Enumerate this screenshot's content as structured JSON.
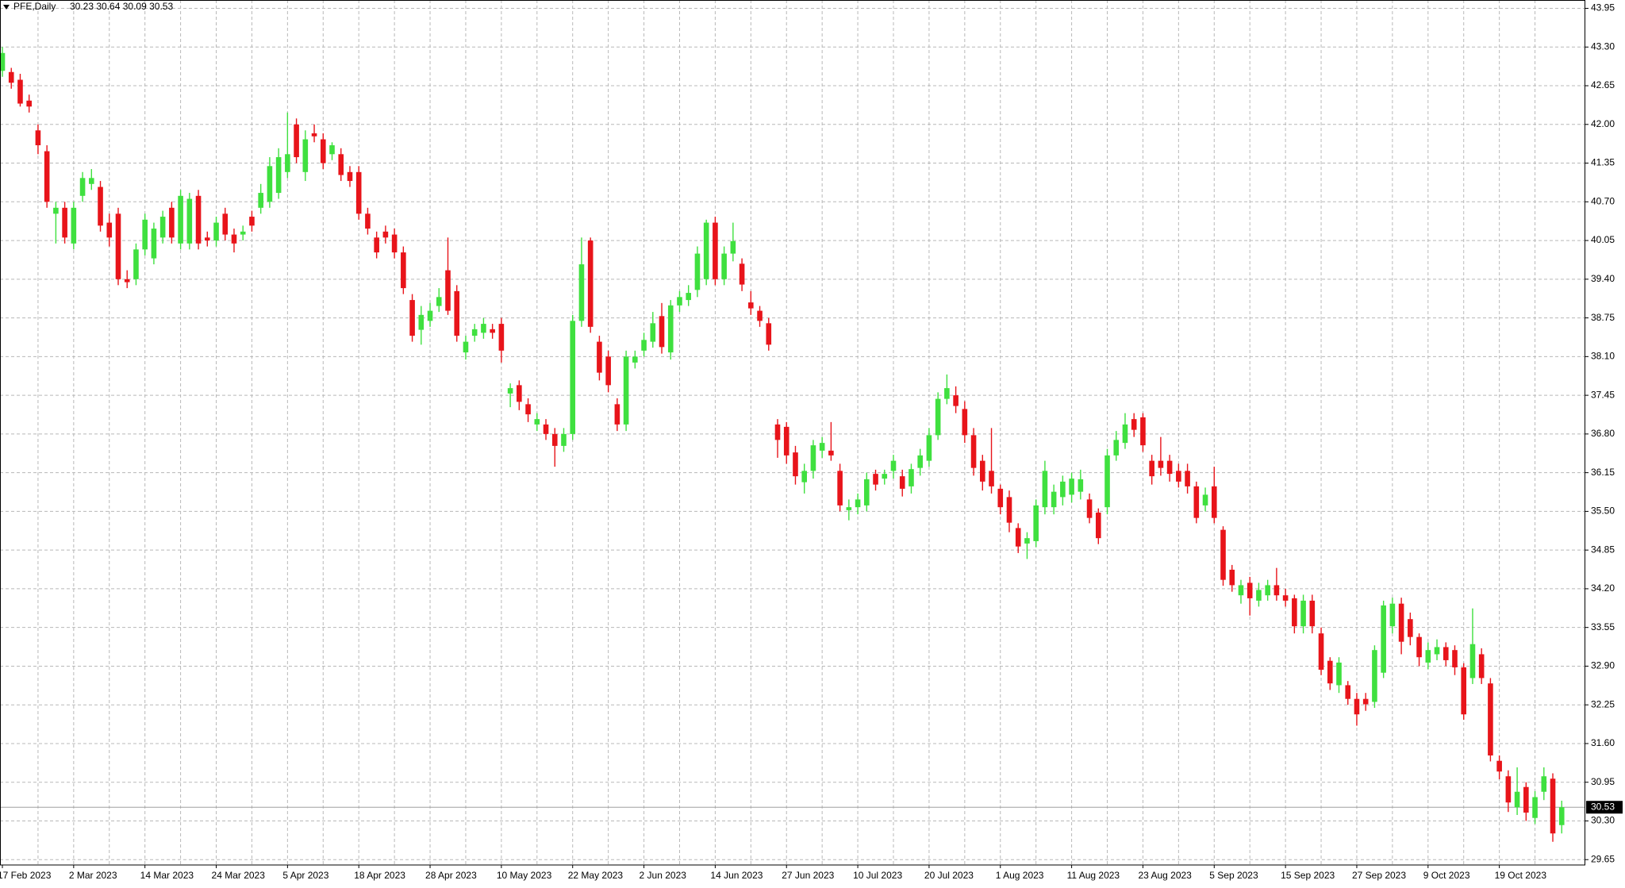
{
  "chart_data": {
    "type": "candlestick",
    "title": "PFE,Daily",
    "subtitle": "30.23 30.64 30.09 30.53",
    "up_color": "#3fe03f",
    "down_color": "#e8141a",
    "grid": true,
    "last_price": 30.53,
    "ylim": [
      29.56,
      44.09
    ],
    "yticks": [
      29.65,
      {
        "value": 30.3,
        "label": "30.30"
      },
      30.95,
      {
        "value": 31.6,
        "label": "31.60"
      },
      32.25,
      {
        "value": 32.9,
        "label": "32.90"
      },
      33.55,
      {
        "value": 34.2,
        "label": "34.20"
      },
      34.85,
      {
        "value": 35.5,
        "label": "35.50"
      },
      36.15,
      {
        "value": 36.8,
        "label": "36.80"
      },
      37.45,
      {
        "value": 38.1,
        "label": "38.10"
      },
      38.75,
      {
        "value": 39.4,
        "label": "39.40"
      },
      40.05,
      {
        "value": 40.7,
        "label": "40.70"
      },
      41.35,
      {
        "value": 42,
        "label": "42.00"
      },
      42.65,
      {
        "value": 43.3,
        "label": "43.30"
      },
      43.95
    ],
    "categories": [
      "17 Feb 2023",
      null,
      null,
      null,
      null,
      null,
      null,
      null,
      "2 Mar 2023",
      null,
      null,
      null,
      null,
      null,
      null,
      null,
      "14 Mar 2023",
      null,
      null,
      null,
      null,
      null,
      null,
      null,
      "24 Mar 2023",
      null,
      null,
      null,
      null,
      null,
      null,
      null,
      "5 Apr 2023",
      null,
      null,
      null,
      null,
      null,
      null,
      null,
      "18 Apr 2023",
      null,
      null,
      null,
      null,
      null,
      null,
      null,
      "28 Apr 2023",
      null,
      null,
      null,
      null,
      null,
      null,
      null,
      "10 May 2023",
      null,
      null,
      null,
      null,
      null,
      null,
      null,
      "22 May 2023",
      null,
      null,
      null,
      null,
      null,
      null,
      null,
      "2 Jun 2023",
      null,
      null,
      null,
      null,
      null,
      null,
      null,
      "14 Jun 2023",
      null,
      null,
      null,
      null,
      null,
      null,
      null,
      "27 Jun 2023",
      null,
      null,
      null,
      null,
      null,
      null,
      null,
      "10 Jul 2023",
      null,
      null,
      null,
      null,
      null,
      null,
      null,
      "20 Jul 2023",
      null,
      null,
      null,
      null,
      null,
      null,
      null,
      "1 Aug 2023",
      null,
      null,
      null,
      null,
      null,
      null,
      null,
      "11 Aug 2023",
      null,
      null,
      null,
      null,
      null,
      null,
      null,
      "23 Aug 2023",
      null,
      null,
      null,
      null,
      null,
      null,
      null,
      "5 Sep 2023",
      null,
      null,
      null,
      null,
      null,
      null,
      null,
      "15 Sep 2023",
      null,
      null,
      null,
      null,
      null,
      null,
      null,
      "27 Sep 2023",
      null,
      null,
      null,
      null,
      null,
      null,
      null,
      "9 Oct 2023",
      null,
      null,
      null,
      null,
      null,
      null,
      null,
      "19 Oct 2023",
      null,
      null,
      null,
      null,
      null,
      null,
      null
    ],
    "ohlc": [
      [
        42.9,
        43.3,
        42.8,
        43.2
      ],
      [
        42.88,
        42.95,
        42.6,
        42.7
      ],
      [
        42.75,
        42.85,
        42.3,
        42.35
      ],
      [
        42.4,
        42.5,
        42.2,
        42.3
      ],
      [
        41.9,
        42.0,
        41.5,
        41.65
      ],
      [
        41.55,
        41.65,
        40.6,
        40.7
      ],
      [
        40.5,
        40.7,
        40.0,
        40.6
      ],
      [
        40.6,
        40.7,
        40.0,
        40.1
      ],
      [
        40.0,
        40.7,
        39.9,
        40.6
      ],
      [
        40.8,
        41.2,
        40.7,
        41.1
      ],
      [
        41.0,
        41.25,
        40.9,
        41.1
      ],
      [
        40.95,
        41.05,
        40.2,
        40.3
      ],
      [
        40.35,
        40.5,
        39.95,
        40.1
      ],
      [
        40.5,
        40.6,
        39.3,
        39.4
      ],
      [
        39.4,
        39.55,
        39.25,
        39.35
      ],
      [
        39.4,
        40.0,
        39.3,
        39.9
      ],
      [
        39.9,
        40.5,
        39.8,
        40.4
      ],
      [
        39.75,
        40.35,
        39.65,
        40.25
      ],
      [
        40.1,
        40.55,
        40.0,
        40.45
      ],
      [
        40.6,
        40.7,
        40.0,
        40.1
      ],
      [
        40.0,
        40.9,
        39.9,
        40.8
      ],
      [
        40.0,
        40.85,
        39.9,
        40.75
      ],
      [
        40.8,
        40.9,
        39.9,
        40.0
      ],
      [
        40.1,
        40.2,
        39.95,
        40.05
      ],
      [
        40.05,
        40.45,
        39.95,
        40.35
      ],
      [
        40.5,
        40.6,
        40.05,
        40.15
      ],
      [
        40.15,
        40.25,
        39.85,
        40.0
      ],
      [
        40.15,
        40.3,
        40.05,
        40.2
      ],
      [
        40.45,
        40.55,
        40.2,
        40.3
      ],
      [
        40.6,
        41.0,
        40.5,
        40.85
      ],
      [
        40.7,
        41.45,
        40.6,
        41.3
      ],
      [
        40.85,
        41.6,
        40.75,
        41.45
      ],
      [
        41.2,
        42.2,
        41.1,
        41.5
      ],
      [
        42.0,
        42.1,
        41.35,
        41.45
      ],
      [
        41.2,
        41.9,
        41.05,
        41.75
      ],
      [
        41.85,
        42.0,
        41.7,
        41.8
      ],
      [
        41.75,
        41.85,
        41.25,
        41.35
      ],
      [
        41.5,
        41.7,
        41.4,
        41.65
      ],
      [
        41.5,
        41.6,
        41.05,
        41.15
      ],
      [
        41.2,
        41.3,
        40.95,
        41.05
      ],
      [
        41.2,
        41.3,
        40.4,
        40.5
      ],
      [
        40.5,
        40.6,
        40.15,
        40.25
      ],
      [
        40.1,
        40.2,
        39.75,
        39.85
      ],
      [
        40.2,
        40.3,
        40.0,
        40.1
      ],
      [
        40.15,
        40.25,
        39.75,
        39.85
      ],
      [
        39.85,
        39.95,
        39.15,
        39.25
      ],
      [
        39.05,
        39.15,
        38.35,
        38.45
      ],
      [
        38.55,
        38.95,
        38.3,
        38.8
      ],
      [
        38.7,
        39.0,
        38.6,
        38.87
      ],
      [
        38.95,
        39.25,
        38.85,
        39.1
      ],
      [
        39.55,
        40.1,
        38.8,
        38.87
      ],
      [
        39.2,
        39.3,
        38.35,
        38.45
      ],
      [
        38.17,
        38.45,
        38.05,
        38.35
      ],
      [
        38.45,
        38.65,
        38.35,
        38.56
      ],
      [
        38.5,
        38.75,
        38.4,
        38.65
      ],
      [
        38.56,
        38.65,
        38.4,
        38.5
      ],
      [
        38.65,
        38.75,
        38.0,
        38.2
      ],
      [
        37.48,
        37.65,
        37.25,
        37.57
      ],
      [
        37.62,
        37.7,
        37.2,
        37.34
      ],
      [
        37.3,
        37.4,
        37.0,
        37.13
      ],
      [
        36.96,
        37.15,
        36.85,
        37.05
      ],
      [
        36.96,
        37.05,
        36.7,
        36.8
      ],
      [
        36.8,
        36.9,
        36.25,
        36.6
      ],
      [
        36.6,
        36.9,
        36.5,
        36.8
      ],
      [
        36.8,
        38.8,
        36.7,
        38.7
      ],
      [
        38.7,
        40.1,
        38.6,
        39.65
      ],
      [
        40.05,
        40.1,
        38.5,
        38.6
      ],
      [
        38.35,
        38.45,
        37.7,
        37.83
      ],
      [
        38.1,
        38.2,
        37.5,
        37.62
      ],
      [
        37.3,
        37.4,
        36.85,
        36.96
      ],
      [
        36.96,
        38.2,
        36.85,
        38.1
      ],
      [
        38.0,
        38.2,
        37.9,
        38.1
      ],
      [
        38.2,
        38.5,
        38.1,
        38.38
      ],
      [
        38.35,
        38.85,
        38.25,
        38.66
      ],
      [
        38.78,
        39.0,
        38.15,
        38.26
      ],
      [
        38.17,
        39.05,
        38.05,
        38.96
      ],
      [
        38.96,
        39.2,
        38.85,
        39.1
      ],
      [
        39.05,
        39.3,
        38.95,
        39.17
      ],
      [
        39.22,
        39.95,
        39.1,
        39.83
      ],
      [
        39.4,
        40.4,
        39.3,
        40.35
      ],
      [
        40.35,
        40.45,
        39.3,
        39.4
      ],
      [
        39.4,
        39.95,
        39.3,
        39.83
      ],
      [
        39.83,
        40.35,
        39.7,
        40.04
      ],
      [
        39.66,
        39.75,
        39.2,
        39.31
      ],
      [
        39.01,
        39.2,
        38.8,
        38.91
      ],
      [
        38.87,
        38.95,
        38.6,
        38.7
      ],
      [
        38.66,
        38.75,
        38.2,
        38.3
      ],
      [
        36.96,
        37.05,
        36.4,
        36.7
      ],
      [
        36.92,
        37.0,
        36.3,
        36.44
      ],
      [
        36.49,
        36.6,
        35.95,
        36.09
      ],
      [
        35.99,
        36.3,
        35.8,
        36.18
      ],
      [
        36.18,
        36.7,
        36.05,
        36.61
      ],
      [
        36.52,
        36.75,
        36.4,
        36.65
      ],
      [
        36.52,
        37.0,
        36.35,
        36.44
      ],
      [
        36.18,
        36.3,
        35.5,
        35.6
      ],
      [
        35.52,
        35.7,
        35.35,
        35.57
      ],
      [
        35.57,
        35.8,
        35.45,
        35.7
      ],
      [
        35.6,
        36.15,
        35.5,
        36.04
      ],
      [
        36.13,
        36.2,
        35.85,
        35.95
      ],
      [
        36.05,
        36.2,
        35.95,
        36.13
      ],
      [
        36.18,
        36.45,
        36.05,
        36.35
      ],
      [
        36.09,
        36.2,
        35.75,
        35.88
      ],
      [
        35.92,
        36.3,
        35.8,
        36.21
      ],
      [
        36.23,
        36.55,
        36.1,
        36.44
      ],
      [
        36.35,
        36.9,
        36.25,
        36.78
      ],
      [
        36.78,
        37.5,
        36.7,
        37.39
      ],
      [
        37.39,
        37.8,
        37.3,
        37.57
      ],
      [
        37.45,
        37.6,
        37.15,
        37.27
      ],
      [
        37.22,
        37.35,
        36.65,
        36.78
      ],
      [
        36.78,
        36.9,
        36.1,
        36.23
      ],
      [
        36.35,
        36.45,
        35.85,
        36.0
      ],
      [
        36.18,
        36.9,
        35.8,
        35.92
      ],
      [
        35.88,
        35.95,
        35.45,
        35.57
      ],
      [
        35.74,
        35.85,
        35.15,
        35.31
      ],
      [
        35.22,
        35.3,
        34.8,
        34.91
      ],
      [
        34.96,
        35.15,
        34.7,
        35.05
      ],
      [
        35.0,
        35.7,
        34.9,
        35.6
      ],
      [
        35.57,
        36.35,
        35.45,
        36.18
      ],
      [
        35.57,
        35.95,
        35.45,
        35.83
      ],
      [
        35.74,
        36.1,
        35.6,
        36.0
      ],
      [
        35.78,
        36.15,
        35.65,
        36.05
      ],
      [
        35.83,
        36.2,
        35.7,
        36.04
      ],
      [
        35.7,
        35.8,
        35.3,
        35.39
      ],
      [
        35.48,
        35.55,
        34.95,
        35.05
      ],
      [
        35.57,
        36.55,
        35.45,
        36.44
      ],
      [
        36.44,
        36.85,
        36.35,
        36.7
      ],
      [
        36.65,
        37.15,
        36.55,
        36.96
      ],
      [
        37.05,
        37.15,
        36.75,
        36.87
      ],
      [
        37.08,
        37.15,
        36.5,
        36.61
      ],
      [
        36.35,
        36.45,
        35.95,
        36.09
      ],
      [
        36.35,
        36.75,
        36.1,
        36.23
      ],
      [
        36.35,
        36.45,
        36.0,
        36.13
      ],
      [
        36.18,
        36.3,
        35.9,
        36.0
      ],
      [
        36.18,
        36.3,
        35.8,
        35.92
      ],
      [
        35.92,
        36.0,
        35.3,
        35.39
      ],
      [
        35.6,
        35.9,
        35.5,
        35.78
      ],
      [
        35.92,
        36.25,
        35.3,
        35.39
      ],
      [
        35.19,
        35.25,
        34.25,
        34.35
      ],
      [
        34.52,
        34.6,
        34.15,
        34.26
      ],
      [
        34.09,
        34.35,
        33.95,
        34.26
      ],
      [
        34.3,
        34.4,
        33.75,
        34.04
      ],
      [
        34.0,
        34.3,
        33.9,
        34.18
      ],
      [
        34.09,
        34.35,
        34.0,
        34.26
      ],
      [
        34.26,
        34.55,
        34.0,
        34.09
      ],
      [
        34.09,
        34.2,
        33.9,
        34.0
      ],
      [
        34.04,
        34.1,
        33.45,
        33.57
      ],
      [
        33.57,
        34.1,
        33.45,
        34.0
      ],
      [
        34.0,
        34.1,
        33.45,
        33.57
      ],
      [
        33.45,
        33.55,
        32.75,
        32.84
      ],
      [
        32.99,
        33.05,
        32.5,
        32.61
      ],
      [
        32.58,
        33.05,
        32.45,
        32.96
      ],
      [
        32.58,
        32.65,
        32.25,
        32.35
      ],
      [
        32.35,
        32.45,
        31.9,
        32.09
      ],
      [
        32.35,
        32.45,
        32.15,
        32.26
      ],
      [
        32.3,
        33.25,
        32.2,
        33.17
      ],
      [
        32.79,
        34.0,
        32.7,
        33.92
      ],
      [
        33.57,
        34.05,
        33.45,
        33.95
      ],
      [
        33.95,
        34.05,
        33.1,
        33.31
      ],
      [
        33.69,
        33.8,
        33.25,
        33.39
      ],
      [
        33.39,
        33.45,
        32.9,
        33.05
      ],
      [
        32.96,
        33.3,
        32.85,
        33.17
      ],
      [
        33.1,
        33.35,
        33.0,
        33.22
      ],
      [
        33.22,
        33.3,
        32.9,
        33.0
      ],
      [
        33.17,
        33.25,
        32.75,
        32.88
      ],
      [
        32.88,
        32.95,
        32.0,
        32.09
      ],
      [
        32.7,
        33.87,
        32.6,
        33.27
      ],
      [
        33.1,
        33.2,
        32.6,
        32.7
      ],
      [
        32.61,
        32.7,
        31.3,
        31.4
      ],
      [
        31.31,
        31.4,
        31.0,
        31.13
      ],
      [
        31.05,
        31.15,
        30.45,
        30.61
      ],
      [
        30.53,
        31.2,
        30.4,
        30.79
      ],
      [
        30.87,
        30.95,
        30.3,
        30.44
      ],
      [
        30.35,
        30.8,
        30.25,
        30.7
      ],
      [
        30.79,
        31.2,
        30.65,
        31.05
      ],
      [
        31.01,
        31.1,
        29.95,
        30.09
      ],
      [
        30.23,
        30.64,
        30.09,
        30.53
      ]
    ]
  }
}
